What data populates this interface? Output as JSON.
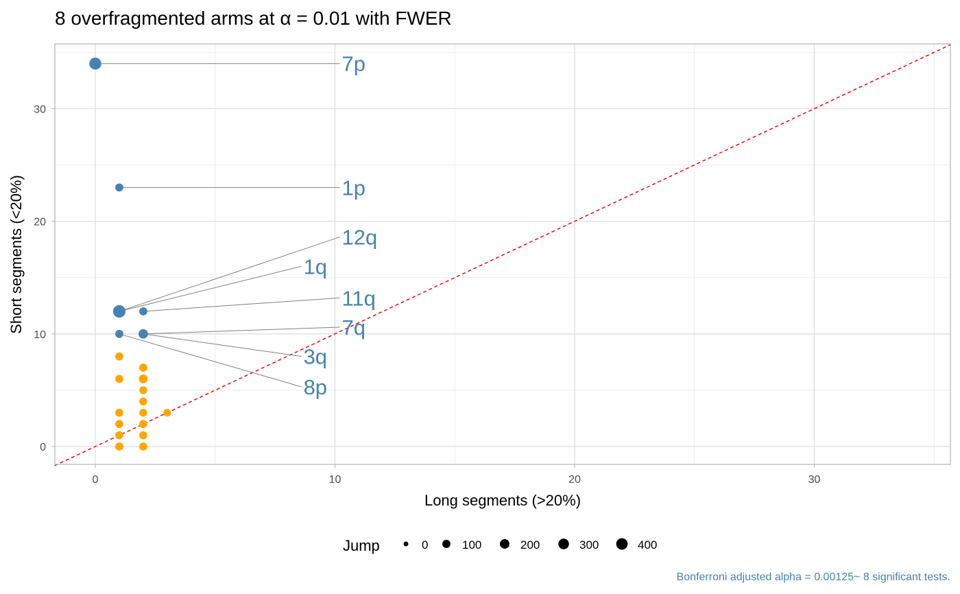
{
  "title": "8 overfragmented arms at α = 0.01 with FWER",
  "caption": "Bonferroni adjusted alpha = 0.00125~ 8 significant tests.",
  "colors": {
    "significant": "#4682b4",
    "not_significant": "#ffa500",
    "diagonal": "#ff0000",
    "segment": "#808080",
    "caption": "#4682b4"
  },
  "legend": {
    "title": "Jump",
    "entries": [
      {
        "label": "0",
        "value": 0
      },
      {
        "label": "100",
        "value": 100
      },
      {
        "label": "200",
        "value": 200
      },
      {
        "label": "300",
        "value": 300
      },
      {
        "label": "400",
        "value": 400
      }
    ]
  },
  "chart_data": {
    "type": "scatter",
    "title": "8 overfragmented arms at α = 0.01 with FWER",
    "xlabel": "Long segments (>20%)",
    "ylabel": "Short segments (<20%)",
    "xlim": [
      -1.7,
      35.7
    ],
    "ylim": [
      -1.7,
      35.7
    ],
    "x_ticks": [
      0,
      10,
      20,
      30
    ],
    "y_ticks": [
      0,
      10,
      20,
      30
    ],
    "grid": true,
    "reference_line": {
      "type": "identity",
      "style": "dashed"
    },
    "size_legend": "Jump",
    "labeled_points": [
      {
        "label": "7p",
        "x": 0,
        "y": 34,
        "jump": 380,
        "label_x": 10.2,
        "label_y": 34
      },
      {
        "label": "1p",
        "x": 1,
        "y": 23,
        "jump": 60,
        "label_x": 10.2,
        "label_y": 23
      },
      {
        "label": "12q",
        "x": 1,
        "y": 12,
        "jump": 420,
        "label_x": 10.2,
        "label_y": 18.6
      },
      {
        "label": "1q",
        "x": 1,
        "y": 12,
        "jump": 420,
        "label_x": 8.6,
        "label_y": 16
      },
      {
        "label": "11q",
        "x": 2,
        "y": 12,
        "jump": 60,
        "label_x": 10.2,
        "label_y": 13.2
      },
      {
        "label": "7q",
        "x": 2,
        "y": 10,
        "jump": 130,
        "label_x": 10.2,
        "label_y": 10.6
      },
      {
        "label": "3q",
        "x": 2,
        "y": 10,
        "jump": 130,
        "label_x": 8.6,
        "label_y": 8
      },
      {
        "label": "8p",
        "x": 1,
        "y": 10,
        "jump": 60,
        "label_x": 8.6,
        "label_y": 5.3
      }
    ],
    "other_points": [
      {
        "x": 1,
        "y": 8,
        "jump": 60
      },
      {
        "x": 1,
        "y": 6,
        "jump": 60
      },
      {
        "x": 1,
        "y": 3,
        "jump": 60
      },
      {
        "x": 1,
        "y": 2,
        "jump": 60
      },
      {
        "x": 1,
        "y": 1,
        "jump": 60
      },
      {
        "x": 1,
        "y": 0,
        "jump": 60
      },
      {
        "x": 2,
        "y": 7,
        "jump": 60
      },
      {
        "x": 2,
        "y": 6,
        "jump": 100
      },
      {
        "x": 2,
        "y": 5,
        "jump": 50
      },
      {
        "x": 2,
        "y": 4,
        "jump": 50
      },
      {
        "x": 2,
        "y": 3,
        "jump": 50
      },
      {
        "x": 2,
        "y": 2,
        "jump": 60
      },
      {
        "x": 2,
        "y": 1,
        "jump": 60
      },
      {
        "x": 2,
        "y": 0,
        "jump": 60
      },
      {
        "x": 3,
        "y": 3,
        "jump": 40
      }
    ]
  }
}
